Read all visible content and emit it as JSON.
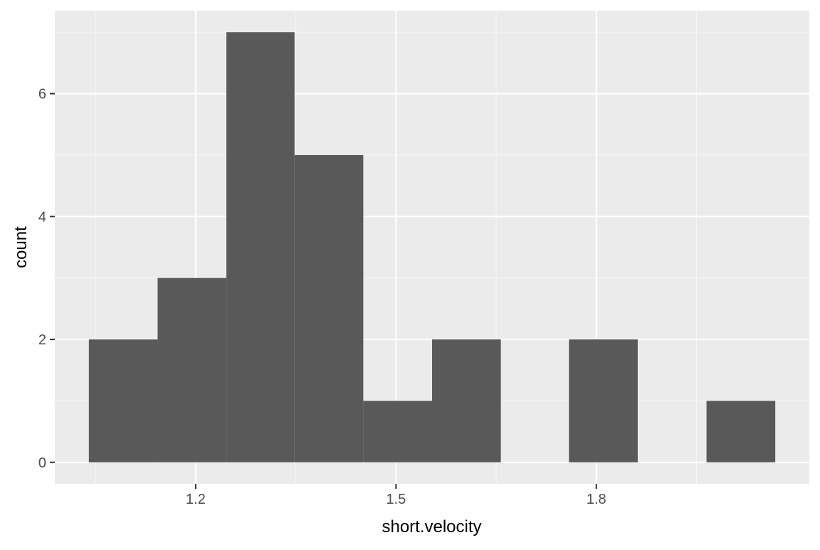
{
  "chart_data": {
    "type": "bar",
    "subtype": "histogram",
    "title": "",
    "xlabel": "short.velocity",
    "ylabel": "count",
    "bins": [
      {
        "x_start": 1.04,
        "x_end": 1.143,
        "count": 2
      },
      {
        "x_start": 1.143,
        "x_end": 1.246,
        "count": 3
      },
      {
        "x_start": 1.246,
        "x_end": 1.348,
        "count": 7
      },
      {
        "x_start": 1.348,
        "x_end": 1.451,
        "count": 5
      },
      {
        "x_start": 1.451,
        "x_end": 1.554,
        "count": 1
      },
      {
        "x_start": 1.554,
        "x_end": 1.657,
        "count": 2
      },
      {
        "x_start": 1.657,
        "x_end": 1.759,
        "count": 0
      },
      {
        "x_start": 1.759,
        "x_end": 1.862,
        "count": 2
      },
      {
        "x_start": 1.862,
        "x_end": 1.965,
        "count": 0
      },
      {
        "x_start": 1.965,
        "x_end": 2.068,
        "count": 1
      }
    ],
    "xlim": [
      0.989,
      2.119
    ],
    "ylim": [
      -0.35,
      7.35
    ],
    "x_ticks": [
      {
        "value": 1.2,
        "label": "1.2"
      },
      {
        "value": 1.5,
        "label": "1.5"
      },
      {
        "value": 1.8,
        "label": "1.8"
      }
    ],
    "y_ticks": [
      {
        "value": 0,
        "label": "0"
      },
      {
        "value": 2,
        "label": "2"
      },
      {
        "value": 4,
        "label": "4"
      },
      {
        "value": 6,
        "label": "6"
      }
    ],
    "grid": true,
    "colors": {
      "bar_fill": "#595959",
      "panel_background": "#ebebeb",
      "grid_major": "#ffffff",
      "grid_minor": "#f5f5f5",
      "tick_text": "#4d4d4d",
      "axis_title_text": "#000000"
    }
  }
}
